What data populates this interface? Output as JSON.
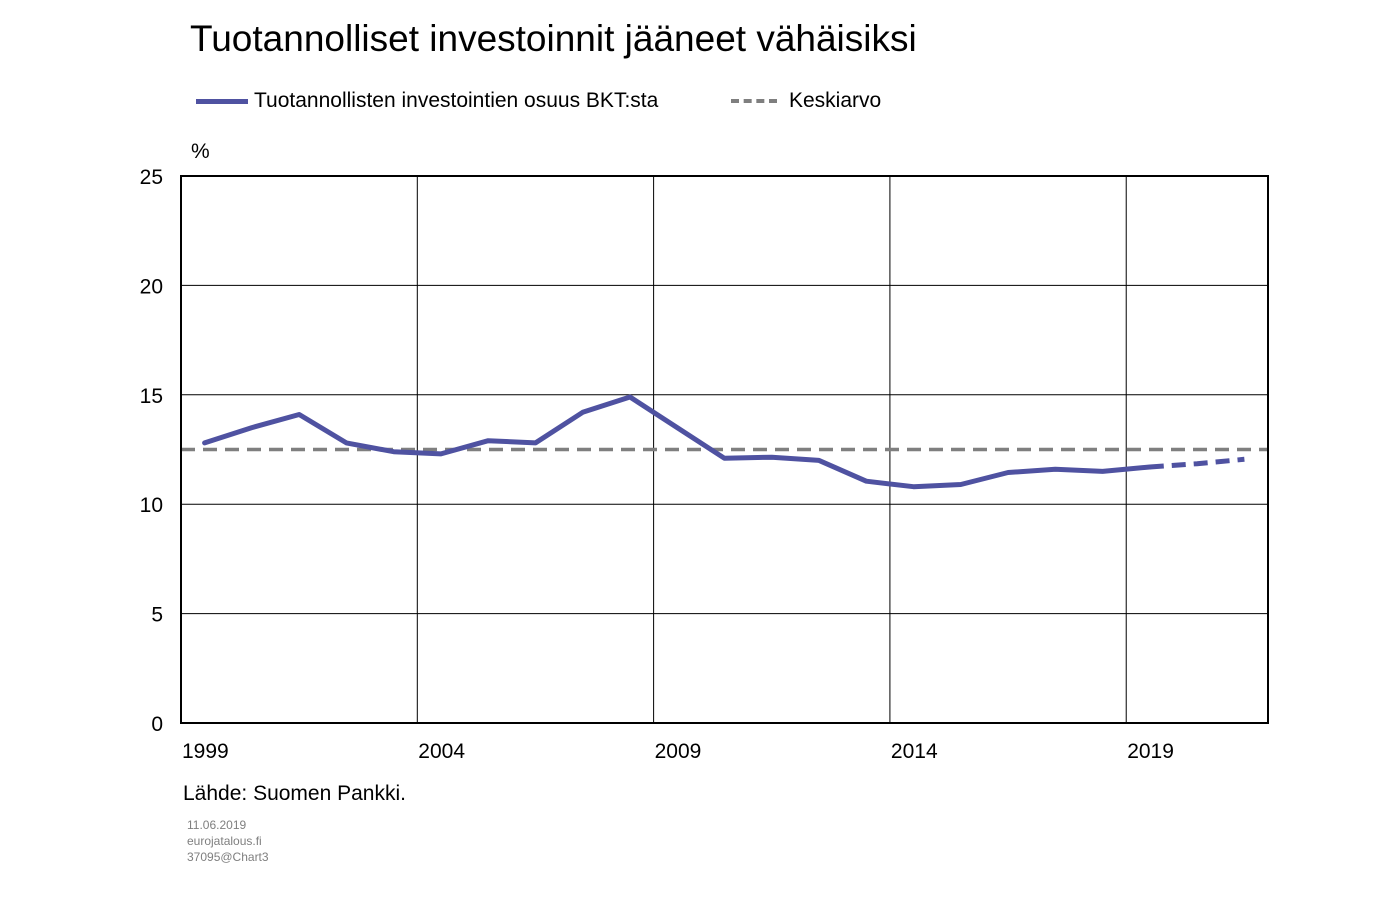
{
  "chart_data": {
    "type": "line",
    "title": "Tuotannolliset investoinnit jääneet vähäisiksi",
    "ylabel": "%",
    "xlim": [
      1999,
      2021
    ],
    "ylim": [
      0,
      25
    ],
    "y_ticks": [
      0,
      5,
      10,
      15,
      20,
      25
    ],
    "x_ticks": [
      1999,
      2004,
      2009,
      2014,
      2019
    ],
    "y_tick_labels": [
      "0",
      "5",
      "10",
      "15",
      "20",
      "25"
    ],
    "x_tick_labels": [
      "1999",
      "2004",
      "2009",
      "2014",
      "2019"
    ],
    "grid": true,
    "legend_placement": "top",
    "series": [
      {
        "name": "Tuotannollisten investointien osuus BKT:sta",
        "color": "#4f52a1",
        "x": [
          1999,
          2000,
          2001,
          2002,
          2003,
          2004,
          2005,
          2006,
          2007,
          2008,
          2009,
          2010,
          2011,
          2012,
          2013,
          2014,
          2015,
          2016,
          2017,
          2018,
          2019,
          2020,
          2021
        ],
        "values": [
          12.8,
          13.5,
          14.1,
          12.8,
          12.4,
          12.3,
          12.9,
          12.8,
          14.2,
          14.9,
          13.5,
          12.1,
          12.15,
          12.0,
          11.05,
          10.8,
          10.9,
          11.45,
          11.6,
          11.5,
          11.7,
          11.85,
          12.05
        ],
        "dashed_from": 2019
      },
      {
        "name": "Keskiarvo",
        "color": "#7f7f7f",
        "style": "dashed",
        "x": [
          1999,
          2021
        ],
        "values": [
          12.5,
          12.5
        ]
      }
    ],
    "source": "Lähde: Suomen Pankki."
  },
  "footer": {
    "date": "11.06.2019",
    "site": "eurojatalous.fi",
    "ref": "37095@Chart3"
  }
}
